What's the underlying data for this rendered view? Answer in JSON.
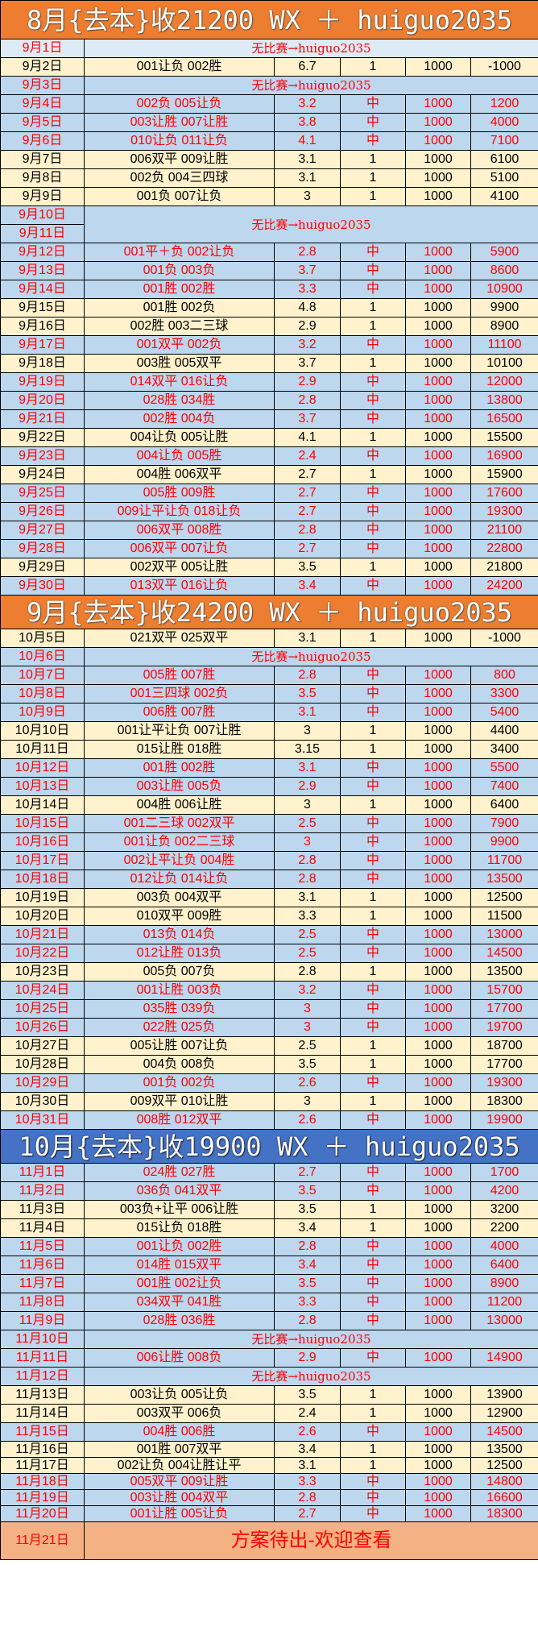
{
  "nomatch_text": "无比赛→huiguo2035",
  "colors": {
    "orange_header": "#ED7D31",
    "blue_header": "#4472C4",
    "hit_row": "#BDD7EE",
    "miss_row": "#FFF2CC",
    "final_row": "#F4B183",
    "hit_text": "#FF0000"
  },
  "sections": [
    {
      "header": "8月{去本}收21200 WX ＋ huiguo2035",
      "header_color": "orange",
      "rows": [
        {
          "date": "9月1日",
          "nomatch": true,
          "light": true
        },
        {
          "date": "9月2日",
          "picks": "001让负 002胜",
          "odds": "6.7",
          "result": "1",
          "stake": "1000",
          "total": "-1000",
          "hit": false
        },
        {
          "date": "9月3日",
          "nomatch": true
        },
        {
          "date": "9月4日",
          "picks": "002负 005让负",
          "odds": "3.2",
          "result": "中",
          "stake": "1000",
          "total": "1200",
          "hit": true
        },
        {
          "date": "9月5日",
          "picks": "003让胜 007让胜",
          "odds": "3.8",
          "result": "中",
          "stake": "1000",
          "total": "4000",
          "hit": true
        },
        {
          "date": "9月6日",
          "picks": "010让负 011让负",
          "odds": "4.1",
          "result": "中",
          "stake": "1000",
          "total": "7100",
          "hit": true
        },
        {
          "date": "9月7日",
          "picks": "006双平 009让胜",
          "odds": "3.1",
          "result": "1",
          "stake": "1000",
          "total": "6100",
          "hit": false
        },
        {
          "date": "9月8日",
          "picks": "002负 004三四球",
          "odds": "3.1",
          "result": "1",
          "stake": "1000",
          "total": "5100",
          "hit": false
        },
        {
          "date": "9月9日",
          "picks": "001负 007让负",
          "odds": "3",
          "result": "1",
          "stake": "1000",
          "total": "4100",
          "hit": false
        },
        {
          "date": "9月10日",
          "nomatch": true,
          "span": 2
        },
        {
          "date": "9月11日",
          "merged": true
        },
        {
          "date": "9月12日",
          "picks": "001平＋负 002让负",
          "odds": "2.8",
          "result": "中",
          "stake": "1000",
          "total": "5900",
          "hit": true
        },
        {
          "date": "9月13日",
          "picks": "001负 003负",
          "odds": "3.7",
          "result": "中",
          "stake": "1000",
          "total": "8600",
          "hit": true
        },
        {
          "date": "9月14日",
          "picks": "001胜 002胜",
          "odds": "3.3",
          "result": "中",
          "stake": "1000",
          "total": "10900",
          "hit": true
        },
        {
          "date": "9月15日",
          "picks": "001胜 002负",
          "odds": "4.8",
          "result": "1",
          "stake": "1000",
          "total": "9900",
          "hit": false
        },
        {
          "date": "9月16日",
          "picks": "002胜 003二三球",
          "odds": "2.9",
          "result": "1",
          "stake": "1000",
          "total": "8900",
          "hit": false
        },
        {
          "date": "9月17日",
          "picks": "001双平 002负",
          "odds": "3.2",
          "result": "中",
          "stake": "1000",
          "total": "11100",
          "hit": true
        },
        {
          "date": "9月18日",
          "picks": "003胜 005双平",
          "odds": "3.7",
          "result": "1",
          "stake": "1000",
          "total": "10100",
          "hit": false
        },
        {
          "date": "9月19日",
          "picks": "014双平 016让负",
          "odds": "2.9",
          "result": "中",
          "stake": "1000",
          "total": "12000",
          "hit": true
        },
        {
          "date": "9月20日",
          "picks": "028胜 034胜",
          "odds": "2.8",
          "result": "中",
          "stake": "1000",
          "total": "13800",
          "hit": true
        },
        {
          "date": "9月21日",
          "picks": "002胜 004负",
          "odds": "3.7",
          "result": "中",
          "stake": "1000",
          "total": "16500",
          "hit": true
        },
        {
          "date": "9月22日",
          "picks": "004让负 005让胜",
          "odds": "4.1",
          "result": "1",
          "stake": "1000",
          "total": "15500",
          "hit": false
        },
        {
          "date": "9月23日",
          "picks": "004让负 005胜",
          "odds": "2.4",
          "result": "中",
          "stake": "1000",
          "total": "16900",
          "hit": true
        },
        {
          "date": "9月24日",
          "picks": "004胜 006双平",
          "odds": "2.7",
          "result": "1",
          "stake": "1000",
          "total": "15900",
          "hit": false
        },
        {
          "date": "9月25日",
          "picks": "005胜 009胜",
          "odds": "2.7",
          "result": "中",
          "stake": "1000",
          "total": "17600",
          "hit": true
        },
        {
          "date": "9月26日",
          "picks": "009让平让负 018让负",
          "odds": "2.7",
          "result": "中",
          "stake": "1000",
          "total": "19300",
          "hit": true
        },
        {
          "date": "9月27日",
          "picks": "006双平 008胜",
          "odds": "2.8",
          "result": "中",
          "stake": "1000",
          "total": "21100",
          "hit": true
        },
        {
          "date": "9月28日",
          "picks": "006双平 007让负",
          "odds": "2.7",
          "result": "中",
          "stake": "1000",
          "total": "22800",
          "hit": true
        },
        {
          "date": "9月29日",
          "picks": "002双平 005让胜",
          "odds": "3.5",
          "result": "1",
          "stake": "1000",
          "total": "21800",
          "hit": false
        },
        {
          "date": "9月30日",
          "picks": "013双平 016让负",
          "odds": "3.4",
          "result": "中",
          "stake": "1000",
          "total": "24200",
          "hit": true
        }
      ]
    },
    {
      "header": "9月{去本}收24200 WX ＋ huiguo2035",
      "header_color": "orange",
      "rows": [
        {
          "date": "10月5日",
          "picks": "021双平 025双平",
          "odds": "3.1",
          "result": "1",
          "stake": "1000",
          "total": "-1000",
          "hit": false
        },
        {
          "date": "10月6日",
          "nomatch": true
        },
        {
          "date": "10月7日",
          "picks": "005胜 007胜",
          "odds": "2.8",
          "result": "中",
          "stake": "1000",
          "total": "800",
          "hit": true
        },
        {
          "date": "10月8日",
          "picks": "001三四球 002负",
          "odds": "3.5",
          "result": "中",
          "stake": "1000",
          "total": "3300",
          "hit": true
        },
        {
          "date": "10月9日",
          "picks": "006胜 007胜",
          "odds": "3.1",
          "result": "中",
          "stake": "1000",
          "total": "5400",
          "hit": true
        },
        {
          "date": "10月10日",
          "picks": "001让平让负 007让胜",
          "odds": "3",
          "result": "1",
          "stake": "1000",
          "total": "4400",
          "hit": false
        },
        {
          "date": "10月11日",
          "picks": "015让胜 018胜",
          "odds": "3.15",
          "result": "1",
          "stake": "1000",
          "total": "3400",
          "hit": false
        },
        {
          "date": "10月12日",
          "picks": "001胜 002胜",
          "odds": "3.1",
          "result": "中",
          "stake": "1000",
          "total": "5500",
          "hit": true
        },
        {
          "date": "10月13日",
          "picks": "003让胜 005负",
          "odds": "2.9",
          "result": "中",
          "stake": "1000",
          "total": "7400",
          "hit": true
        },
        {
          "date": "10月14日",
          "picks": "004胜 006让胜",
          "odds": "3",
          "result": "1",
          "stake": "1000",
          "total": "6400",
          "hit": false
        },
        {
          "date": "10月15日",
          "picks": "001二三球 002双平",
          "odds": "2.5",
          "result": "中",
          "stake": "1000",
          "total": "7900",
          "hit": true
        },
        {
          "date": "10月16日",
          "picks": "001让负 002二三球",
          "odds": "3",
          "result": "中",
          "stake": "1000",
          "total": "9900",
          "hit": true
        },
        {
          "date": "10月17日",
          "picks": "002让平让负 004胜",
          "odds": "2.8",
          "result": "中",
          "stake": "1000",
          "total": "11700",
          "hit": true
        },
        {
          "date": "10月18日",
          "picks": "012让负 014让负",
          "odds": "2.8",
          "result": "中",
          "stake": "1000",
          "total": "13500",
          "hit": true
        },
        {
          "date": "10月19日",
          "picks": "003负 004双平",
          "odds": "3.1",
          "result": "1",
          "stake": "1000",
          "total": "12500",
          "hit": false
        },
        {
          "date": "10月20日",
          "picks": "010双平 009胜",
          "odds": "3.3",
          "result": "1",
          "stake": "1000",
          "total": "11500",
          "hit": false
        },
        {
          "date": "10月21日",
          "picks": "013负 014负",
          "odds": "2.5",
          "result": "中",
          "stake": "1000",
          "total": "13000",
          "hit": true
        },
        {
          "date": "10月22日",
          "picks": "012让胜 013负",
          "odds": "2.5",
          "result": "中",
          "stake": "1000",
          "total": "14500",
          "hit": true
        },
        {
          "date": "10月23日",
          "picks": "005负 007负",
          "odds": "2.8",
          "result": "1",
          "stake": "1000",
          "total": "13500",
          "hit": false
        },
        {
          "date": "10月24日",
          "picks": "001让胜 003负",
          "odds": "3.2",
          "result": "中",
          "stake": "1000",
          "total": "15700",
          "hit": true
        },
        {
          "date": "10月25日",
          "picks": "035胜 039负",
          "odds": "3",
          "result": "中",
          "stake": "1000",
          "total": "17700",
          "hit": true
        },
        {
          "date": "10月26日",
          "picks": "022胜 025负",
          "odds": "3",
          "result": "中",
          "stake": "1000",
          "total": "19700",
          "hit": true
        },
        {
          "date": "10月27日",
          "picks": "005让胜 007让负",
          "odds": "2.5",
          "result": "1",
          "stake": "1000",
          "total": "18700",
          "hit": false
        },
        {
          "date": "10月28日",
          "picks": "004负 008负",
          "odds": "3.5",
          "result": "1",
          "stake": "1000",
          "total": "17700",
          "hit": false
        },
        {
          "date": "10月29日",
          "picks": "001负 002负",
          "odds": "2.6",
          "result": "中",
          "stake": "1000",
          "total": "19300",
          "hit": true
        },
        {
          "date": "10月30日",
          "picks": "009双平 010让胜",
          "odds": "3",
          "result": "1",
          "stake": "1000",
          "total": "18300",
          "hit": false
        },
        {
          "date": "10月31日",
          "picks": "008胜 012双平",
          "odds": "2.6",
          "result": "中",
          "stake": "1000",
          "total": "19900",
          "hit": true
        }
      ]
    },
    {
      "header": "10月{去本}收19900 WX ＋ huiguo2035",
      "header_color": "blue",
      "rows": [
        {
          "date": "11月1日",
          "picks": "024胜 027胜",
          "odds": "2.7",
          "result": "中",
          "stake": "1000",
          "total": "1700",
          "hit": true
        },
        {
          "date": "11月2日",
          "picks": "036负 041双平",
          "odds": "3.5",
          "result": "中",
          "stake": "1000",
          "total": "4200",
          "hit": true
        },
        {
          "date": "11月3日",
          "picks": "003负+让平 006让胜",
          "odds": "3.5",
          "result": "1",
          "stake": "1000",
          "total": "3200",
          "hit": false
        },
        {
          "date": "11月4日",
          "picks": "015让负 018胜",
          "odds": "3.4",
          "result": "1",
          "stake": "1000",
          "total": "2200",
          "hit": false
        },
        {
          "date": "11月5日",
          "picks": "001让负 002胜",
          "odds": "2.8",
          "result": "中",
          "stake": "1000",
          "total": "4000",
          "hit": true
        },
        {
          "date": "11月6日",
          "picks": "014胜 015双平",
          "odds": "3.4",
          "result": "中",
          "stake": "1000",
          "total": "6400",
          "hit": true
        },
        {
          "date": "11月7日",
          "picks": "001胜 002让负",
          "odds": "3.5",
          "result": "中",
          "stake": "1000",
          "total": "8900",
          "hit": true
        },
        {
          "date": "11月8日",
          "picks": "034双平 041胜",
          "odds": "3.3",
          "result": "中",
          "stake": "1000",
          "total": "11200",
          "hit": true
        },
        {
          "date": "11月9日",
          "picks": "028胜 036胜",
          "odds": "2.8",
          "result": "中",
          "stake": "1000",
          "total": "13000",
          "hit": true
        },
        {
          "date": "11月10日",
          "nomatch": true
        },
        {
          "date": "11月11日",
          "picks": "006让胜 008负",
          "odds": "2.9",
          "result": "中",
          "stake": "1000",
          "total": "14900",
          "hit": true
        },
        {
          "date": "11月12日",
          "nomatch": true
        },
        {
          "date": "11月13日",
          "picks": "003让负 005让负",
          "odds": "3.5",
          "result": "1",
          "stake": "1000",
          "total": "13900",
          "hit": false
        },
        {
          "date": "11月14日",
          "picks": "003双平 006负",
          "odds": "2.4",
          "result": "1",
          "stake": "1000",
          "total": "12900",
          "hit": false
        },
        {
          "date": "11月15日",
          "picks": "004胜 006胜",
          "odds": "2.6",
          "result": "中",
          "stake": "1000",
          "total": "14500",
          "hit": true
        },
        {
          "date": "11月16日",
          "picks": "001胜 007双平",
          "odds": "3.4",
          "result": "1",
          "stake": "1000",
          "total": "13500",
          "hit": false
        },
        {
          "date": "11月17日",
          "picks": "002让负 004让胜让平",
          "odds": "3.1",
          "result": "1",
          "stake": "1000",
          "total": "12500",
          "hit": false
        },
        {
          "date": "11月18日",
          "picks": "005双平 009让胜",
          "odds": "3.3",
          "result": "中",
          "stake": "1000",
          "total": "14800",
          "hit": true
        },
        {
          "date": "11月19日",
          "picks": "003让胜 004双平",
          "odds": "2.8",
          "result": "中",
          "stake": "1000",
          "total": "16600",
          "hit": true
        },
        {
          "date": "11月20日",
          "picks": "001让胜 005让负",
          "odds": "2.7",
          "result": "中",
          "stake": "1000",
          "total": "18300",
          "hit": true
        }
      ]
    }
  ],
  "final": {
    "date": "11月21日",
    "message": "方案待出-欢迎查看"
  }
}
